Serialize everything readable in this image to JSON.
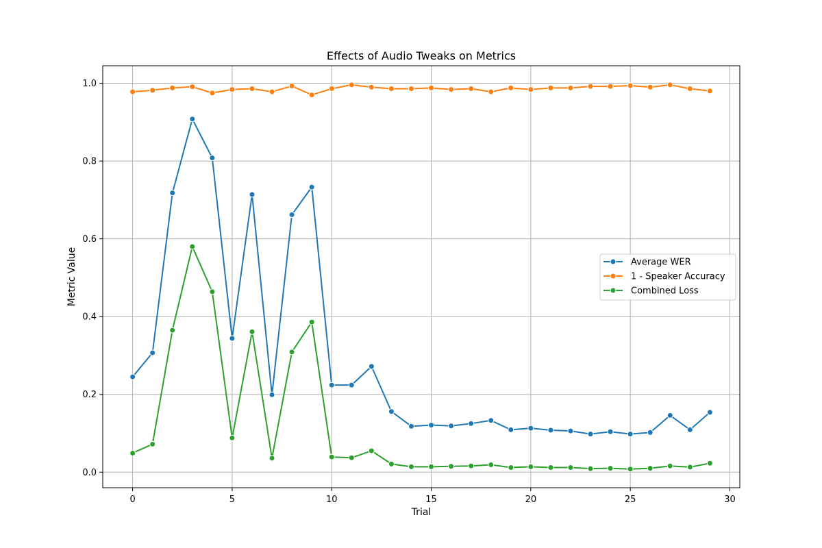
{
  "chart_data": {
    "type": "line",
    "title": "Effects of Audio Tweaks on Metrics",
    "xlabel": "Trial",
    "ylabel": "Metric Value",
    "xlim": [
      -1.5,
      30.5
    ],
    "ylim": [
      -0.04,
      1.045
    ],
    "xticks": [
      0,
      5,
      10,
      15,
      20,
      25,
      30
    ],
    "yticks": [
      0.0,
      0.2,
      0.4,
      0.6,
      0.8,
      1.0
    ],
    "xtick_labels": [
      "0",
      "5",
      "10",
      "15",
      "20",
      "25",
      "30"
    ],
    "ytick_labels": [
      "0.0",
      "0.2",
      "0.4",
      "0.6",
      "0.8",
      "1.0"
    ],
    "grid": true,
    "legend_position": "center-right",
    "x": [
      0,
      1,
      2,
      3,
      4,
      5,
      6,
      7,
      8,
      9,
      10,
      11,
      12,
      13,
      14,
      15,
      16,
      17,
      18,
      19,
      20,
      21,
      22,
      23,
      24,
      25,
      26,
      27,
      28,
      29
    ],
    "series": [
      {
        "name": "Average WER",
        "color": "#1f77b4",
        "values": [
          0.245,
          0.307,
          0.718,
          0.908,
          0.808,
          0.344,
          0.714,
          0.199,
          0.662,
          0.733,
          0.224,
          0.224,
          0.272,
          0.156,
          0.118,
          0.121,
          0.119,
          0.125,
          0.133,
          0.109,
          0.113,
          0.108,
          0.106,
          0.098,
          0.104,
          0.098,
          0.102,
          0.146,
          0.109,
          0.154
        ]
      },
      {
        "name": "1 - Speaker Accuracy",
        "color": "#ff7f0e",
        "values": [
          0.978,
          0.982,
          0.988,
          0.991,
          0.975,
          0.984,
          0.986,
          0.978,
          0.993,
          0.97,
          0.986,
          0.996,
          0.99,
          0.986,
          0.986,
          0.988,
          0.984,
          0.986,
          0.978,
          0.988,
          0.984,
          0.988,
          0.988,
          0.992,
          0.992,
          0.994,
          0.99,
          0.996,
          0.986,
          0.98
        ]
      },
      {
        "name": "Combined Loss",
        "color": "#2ca02c",
        "values": [
          0.049,
          0.072,
          0.365,
          0.58,
          0.464,
          0.088,
          0.361,
          0.036,
          0.309,
          0.386,
          0.039,
          0.037,
          0.055,
          0.021,
          0.014,
          0.014,
          0.015,
          0.016,
          0.019,
          0.012,
          0.014,
          0.012,
          0.012,
          0.009,
          0.01,
          0.008,
          0.01,
          0.016,
          0.013,
          0.023
        ]
      }
    ]
  }
}
